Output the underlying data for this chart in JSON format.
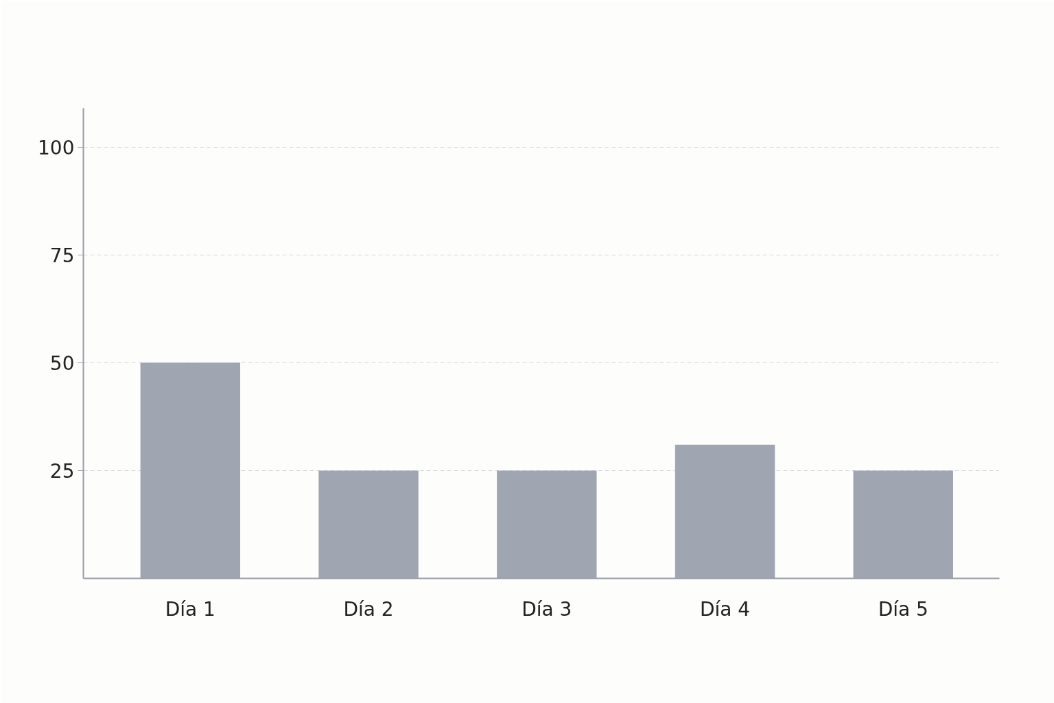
{
  "chart_data": {
    "type": "bar",
    "categories": [
      "Día 1",
      "Día 2",
      "Día 3",
      "Día 4",
      "Día 5"
    ],
    "values": [
      50,
      25,
      25,
      31,
      25
    ],
    "color": "#a0a6b1",
    "ylim": [
      0,
      109
    ],
    "yticks": [
      25,
      50,
      75,
      100
    ],
    "grid": "y"
  }
}
